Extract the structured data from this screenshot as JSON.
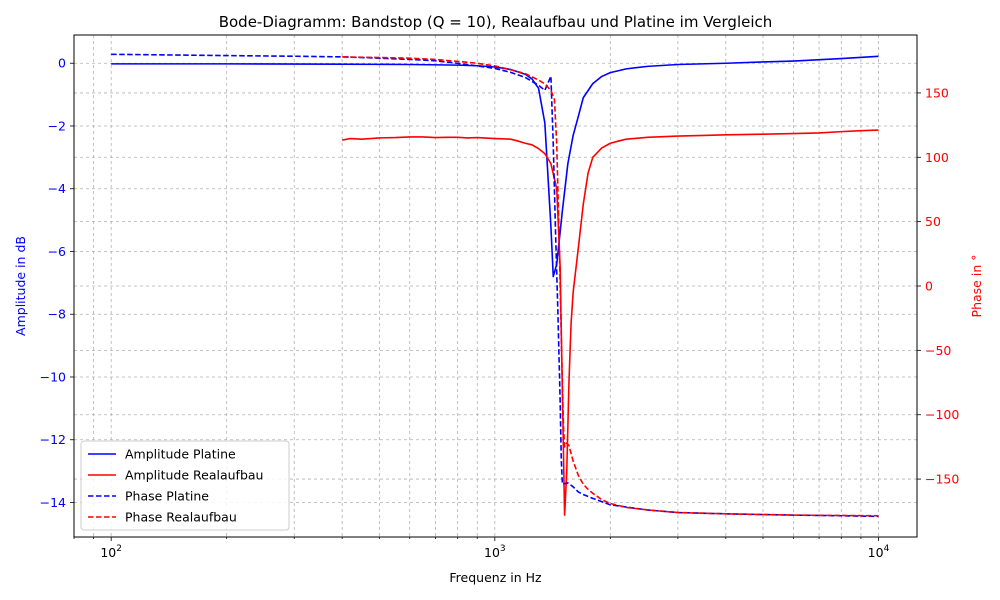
{
  "chart_data": {
    "type": "line",
    "title": "Bode-Diagramm: Bandstop (Q = 10), Realaufbau und Platine im Vergleich",
    "xlabel": "Frequenz in Hz",
    "ylabel_left": "Amplitude in dB",
    "ylabel_right": "Phase in °",
    "x_scale": "log",
    "xlim": [
      80,
      12600
    ],
    "ylim_left": [
      -15.1,
      0.9
    ],
    "ylim_right": [
      -195,
      195
    ],
    "x_ticks": [
      100,
      1000,
      10000
    ],
    "x_tick_labels": [
      {
        "base": "10",
        "exp": "2"
      },
      {
        "base": "10",
        "exp": "3"
      },
      {
        "base": "10",
        "exp": "4"
      }
    ],
    "y_left_ticks": [
      0,
      -2,
      -4,
      -6,
      -8,
      -10,
      -12,
      -14
    ],
    "y_left_tick_labels": [
      "0",
      "−2",
      "−4",
      "−6",
      "−8",
      "−10",
      "−12",
      "−14"
    ],
    "y_right_ticks": [
      150,
      100,
      50,
      0,
      -50,
      -100,
      -150
    ],
    "y_right_tick_labels": [
      "150",
      "100",
      "50",
      "0",
      "−50",
      "−100",
      "−150"
    ],
    "grid": true,
    "legend_position": "lower-left",
    "colors": {
      "left_axis": "#0000ff",
      "right_axis": "#ff0000"
    },
    "series": [
      {
        "name": "Amplitude Platine",
        "axis": "left",
        "color": "#0000ff",
        "dash": "solid",
        "x": [
          100,
          200,
          400,
          600,
          800,
          900,
          1000,
          1100,
          1200,
          1250,
          1300,
          1350,
          1400,
          1420,
          1450,
          1500,
          1550,
          1600,
          1650,
          1700,
          1800,
          1900,
          2000,
          2200,
          2500,
          3000,
          4000,
          5000,
          6000,
          8000,
          10000
        ],
        "y": [
          -0.02,
          -0.02,
          -0.03,
          -0.04,
          -0.06,
          -0.08,
          -0.12,
          -0.2,
          -0.35,
          -0.5,
          -0.8,
          -1.9,
          -5.2,
          -6.8,
          -6.4,
          -4.7,
          -3.2,
          -2.3,
          -1.7,
          -1.1,
          -0.65,
          -0.42,
          -0.3,
          -0.18,
          -0.1,
          -0.04,
          0.0,
          0.04,
          0.07,
          0.15,
          0.22
        ]
      },
      {
        "name": "Amplitude Realaufbau",
        "axis": "left",
        "color": "#ff0000",
        "dash": "solid",
        "x": [
          400,
          420,
          450,
          500,
          550,
          600,
          650,
          700,
          750,
          800,
          850,
          900,
          1000,
          1100,
          1150,
          1200,
          1250,
          1300,
          1350,
          1400,
          1450,
          1480,
          1500,
          1520,
          1540,
          1560,
          1580,
          1600,
          1650,
          1700,
          1750,
          1800,
          1900,
          2000,
          2100,
          2200,
          2500,
          3000,
          3500,
          4000,
          5000,
          6000,
          7000,
          8000,
          9000,
          10000
        ],
        "y": [
          -2.45,
          -2.4,
          -2.42,
          -2.38,
          -2.37,
          -2.35,
          -2.35,
          -2.37,
          -2.36,
          -2.36,
          -2.38,
          -2.37,
          -2.4,
          -2.42,
          -2.48,
          -2.55,
          -2.6,
          -2.72,
          -2.88,
          -3.2,
          -4.0,
          -6.5,
          -10.5,
          -14.4,
          -13.0,
          -10.2,
          -8.3,
          -7.3,
          -5.9,
          -4.5,
          -3.5,
          -3.0,
          -2.7,
          -2.55,
          -2.48,
          -2.42,
          -2.36,
          -2.32,
          -2.3,
          -2.28,
          -2.26,
          -2.24,
          -2.22,
          -2.18,
          -2.15,
          -2.13
        ]
      },
      {
        "name": "Phase Platine",
        "axis": "right",
        "color": "#0000ff",
        "dash": "dashed",
        "x": [
          100,
          200,
          300,
          400,
          500,
          600,
          700,
          800,
          900,
          1000,
          1100,
          1200,
          1300,
          1350,
          1400,
          1420,
          1440,
          1460,
          1480,
          1490,
          1500,
          1550,
          1600,
          1650,
          1700,
          1800,
          2000,
          2500,
          3000,
          4000,
          6000,
          8000,
          10000
        ],
        "y": [
          180,
          179,
          178.5,
          178,
          177,
          176,
          175,
          173,
          171,
          169,
          166,
          162,
          156,
          152,
          163,
          110,
          40,
          -20,
          -90,
          -135,
          -154,
          -153,
          -156,
          -160,
          -162,
          -165,
          -170,
          -174,
          -176,
          -177,
          -178,
          -178.5,
          -179
        ]
      },
      {
        "name": "Phase Realaufbau",
        "axis": "right",
        "color": "#ff0000",
        "dash": "dashed",
        "x": [
          400,
          500,
          600,
          700,
          800,
          900,
          1000,
          1100,
          1200,
          1300,
          1350,
          1400,
          1430,
          1450,
          1470,
          1490,
          1510,
          1520,
          1540,
          1560,
          1580,
          1600,
          1650,
          1700,
          1750,
          1800,
          1900,
          2000,
          2200,
          2500,
          3000,
          4000,
          6000,
          10000
        ],
        "y": [
          178,
          177.5,
          177,
          176,
          174.5,
          173,
          171,
          168,
          165,
          160,
          157,
          152,
          145,
          110,
          40,
          -40,
          -110,
          -125,
          -122,
          -124,
          -130,
          -136,
          -147,
          -154,
          -158,
          -161,
          -166,
          -169,
          -172,
          -174,
          -176,
          -177,
          -178,
          -178.5
        ]
      }
    ]
  }
}
